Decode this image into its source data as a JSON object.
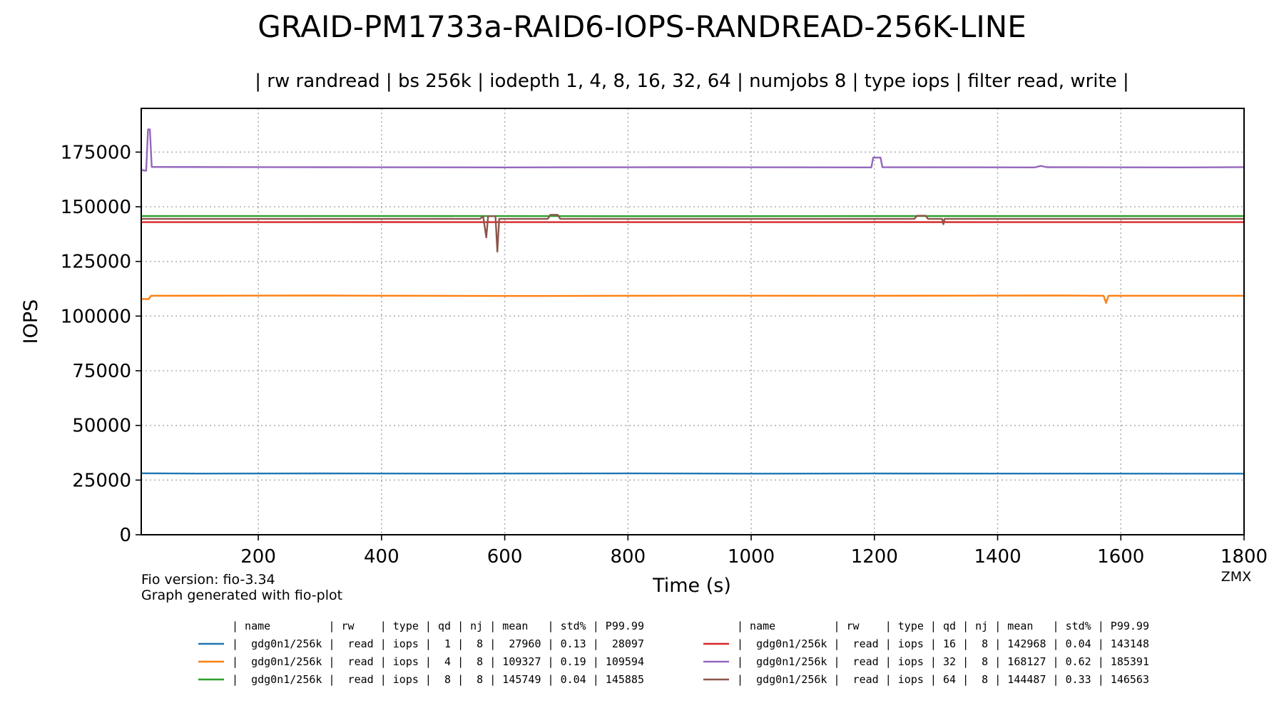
{
  "chart_data": {
    "type": "line",
    "title": "GRAID-PM1733a-RAID6-IOPS-RANDREAD-256K-LINE",
    "subtitle": "| rw randread | bs 256k | iodepth 1, 4, 8, 16, 32, 64 | numjobs 8 | type iops | filter read, write |",
    "xlabel": "Time (s)",
    "ylabel": "IOPS",
    "xlim": [
      10,
      1800
    ],
    "ylim": [
      0,
      195000
    ],
    "xticks": [
      200,
      400,
      600,
      800,
      1000,
      1200,
      1400,
      1600,
      1800
    ],
    "yticks": [
      0,
      25000,
      50000,
      75000,
      100000,
      125000,
      150000,
      175000
    ],
    "grid": true,
    "series": [
      {
        "color": "#1f77b4",
        "values": [
          [
            10,
            28097
          ],
          [
            100,
            27990
          ],
          [
            300,
            28050
          ],
          [
            500,
            27980
          ],
          [
            800,
            28060
          ],
          [
            1000,
            27950
          ],
          [
            1200,
            28020
          ],
          [
            1500,
            27990
          ],
          [
            1800,
            27960
          ]
        ]
      },
      {
        "color": "#ff7f0e",
        "values": [
          [
            10,
            107800
          ],
          [
            22,
            107800
          ],
          [
            26,
            109300
          ],
          [
            300,
            109400
          ],
          [
            600,
            109200
          ],
          [
            900,
            109350
          ],
          [
            1200,
            109300
          ],
          [
            1500,
            109400
          ],
          [
            1572,
            109300
          ],
          [
            1576,
            106000
          ],
          [
            1580,
            109300
          ],
          [
            1800,
            109300
          ]
        ]
      },
      {
        "color": "#2ca02c",
        "values": [
          [
            10,
            145749
          ],
          [
            400,
            145800
          ],
          [
            800,
            145700
          ],
          [
            1200,
            145760
          ],
          [
            1800,
            145749
          ]
        ]
      },
      {
        "color": "#d62728",
        "values": [
          [
            10,
            142968
          ],
          [
            400,
            143000
          ],
          [
            800,
            142950
          ],
          [
            1200,
            143000
          ],
          [
            1800,
            142968
          ]
        ]
      },
      {
        "color": "#9467bd",
        "values": [
          [
            10,
            166800
          ],
          [
            18,
            166500
          ],
          [
            21,
            185391
          ],
          [
            24,
            185391
          ],
          [
            27,
            168200
          ],
          [
            300,
            168100
          ],
          [
            600,
            168000
          ],
          [
            900,
            168100
          ],
          [
            1195,
            168000
          ],
          [
            1198,
            172500
          ],
          [
            1210,
            172500
          ],
          [
            1213,
            168100
          ],
          [
            1460,
            168000
          ],
          [
            1470,
            168700
          ],
          [
            1480,
            168100
          ],
          [
            1700,
            168000
          ],
          [
            1800,
            168127
          ]
        ]
      },
      {
        "color": "#8c564b",
        "values": [
          [
            10,
            144487
          ],
          [
            560,
            144500
          ],
          [
            565,
            145700
          ],
          [
            570,
            136000
          ],
          [
            573,
            145700
          ],
          [
            585,
            145700
          ],
          [
            588,
            129500
          ],
          [
            591,
            144500
          ],
          [
            670,
            144500
          ],
          [
            674,
            146300
          ],
          [
            686,
            146300
          ],
          [
            690,
            144500
          ],
          [
            1265,
            144500
          ],
          [
            1269,
            145900
          ],
          [
            1283,
            145900
          ],
          [
            1287,
            144500
          ],
          [
            1310,
            144500
          ],
          [
            1312,
            142000
          ],
          [
            1314,
            144500
          ],
          [
            1800,
            144487
          ]
        ]
      }
    ]
  },
  "footer": {
    "fio_version": "Fio version: fio-3.34",
    "generated_with": "Graph generated with fio-plot",
    "brand": "ZMX"
  },
  "legend_table": {
    "header": "| name         | rw    | type | qd | nj | mean   | std% | P99.99",
    "rows": [
      {
        "color": "#1f77b4",
        "text": "|  gdg0n1/256k |  read | iops |  1 |  8 |  27960 | 0.13 |  28097"
      },
      {
        "color": "#ff7f0e",
        "text": "|  gdg0n1/256k |  read | iops |  4 |  8 | 109327 | 0.19 | 109594"
      },
      {
        "color": "#2ca02c",
        "text": "|  gdg0n1/256k |  read | iops |  8 |  8 | 145749 | 0.04 | 145885"
      },
      {
        "color": "#d62728",
        "text": "|  gdg0n1/256k |  read | iops | 16 |  8 | 142968 | 0.04 | 143148"
      },
      {
        "color": "#9467bd",
        "text": "|  gdg0n1/256k |  read | iops | 32 |  8 | 168127 | 0.62 | 185391"
      },
      {
        "color": "#8c564b",
        "text": "|  gdg0n1/256k |  read | iops | 64 |  8 | 144487 | 0.33 | 146563"
      }
    ]
  }
}
